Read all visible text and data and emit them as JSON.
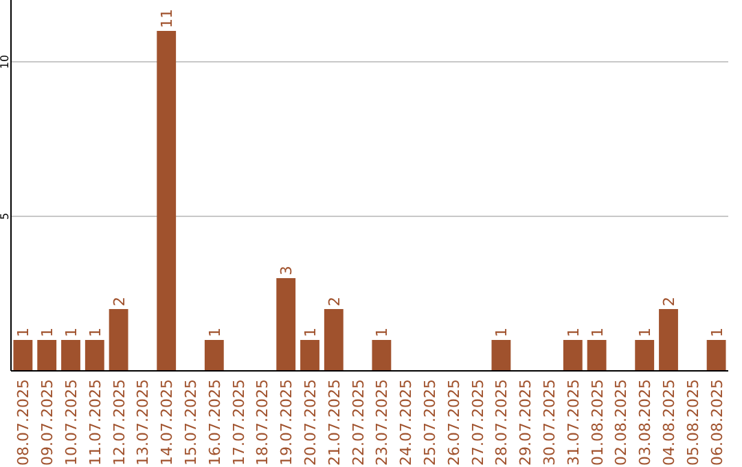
{
  "chart_data": {
    "type": "bar",
    "categories": [
      "08.07.2025",
      "09.07.2025",
      "10.07.2025",
      "11.07.2025",
      "12.07.2025",
      "13.07.2025",
      "14.07.2025",
      "15.07.2025",
      "16.07.2025",
      "17.07.2025",
      "18.07.2025",
      "19.07.2025",
      "20.07.2025",
      "21.07.2025",
      "22.07.2025",
      "23.07.2025",
      "24.07.2025",
      "25.07.2025",
      "26.07.2025",
      "27.07.2025",
      "28.07.2025",
      "29.07.2025",
      "30.07.2025",
      "31.07.2025",
      "01.08.2025",
      "02.08.2025",
      "03.08.2025",
      "04.08.2025",
      "05.08.2025",
      "06.08.2025"
    ],
    "values": [
      1,
      1,
      1,
      1,
      2,
      0,
      11,
      0,
      1,
      0,
      0,
      3,
      1,
      2,
      0,
      1,
      0,
      0,
      0,
      0,
      1,
      0,
      0,
      1,
      1,
      0,
      1,
      2,
      0,
      1
    ],
    "value_labels": [
      "1",
      "1",
      "1",
      "1",
      "2",
      null,
      "11",
      null,
      "1",
      null,
      null,
      "3",
      "1",
      "2",
      null,
      "1",
      null,
      null,
      null,
      null,
      "1",
      null,
      null,
      "1",
      "1",
      null,
      "1",
      "2",
      null,
      "1"
    ],
    "color": "#a0522d",
    "ylim": [
      0,
      12
    ],
    "yticks": [
      5,
      10
    ],
    "grid": "y"
  }
}
